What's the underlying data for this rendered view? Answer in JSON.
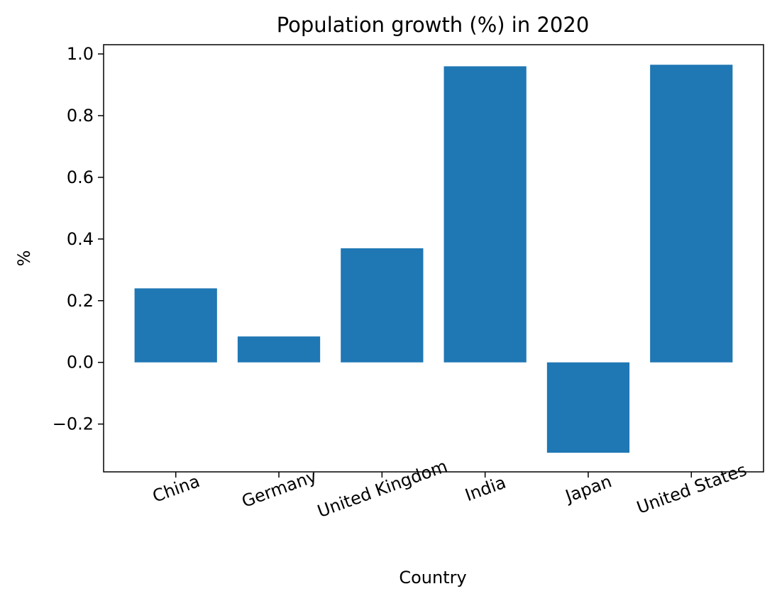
{
  "chart_data": {
    "type": "bar",
    "title": "Population growth (%) in 2020",
    "xlabel": "Country",
    "ylabel": "%",
    "categories": [
      "China",
      "Germany",
      "United Kingdom",
      "India",
      "Japan",
      "United States"
    ],
    "values": [
      0.24,
      0.084,
      0.37,
      0.96,
      -0.293,
      0.965
    ],
    "ylim": [
      -0.355,
      1.03
    ],
    "yticks": [
      -0.2,
      0.0,
      0.2,
      0.4,
      0.6,
      0.8,
      1.0
    ],
    "ytick_labels": [
      "−0.2",
      "0.0",
      "0.2",
      "0.4",
      "0.6",
      "0.8",
      "1.0"
    ],
    "xtick_rotation_deg": -20,
    "bar_color": "#1f77b4",
    "grid": false,
    "legend": "none"
  }
}
